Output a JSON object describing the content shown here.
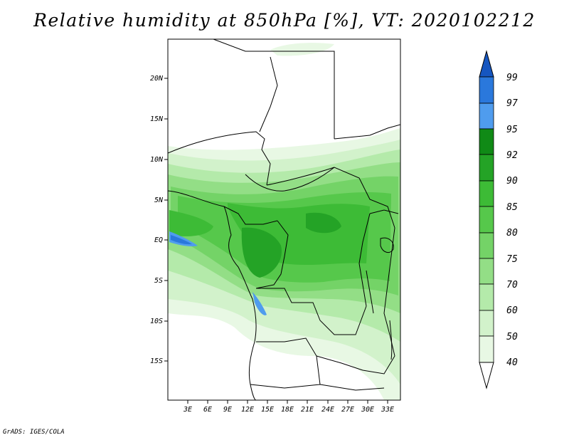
{
  "title": "Relative humidity at 850hPa [%], VT: 2020102212",
  "credit": "GrADS: IGES/COLA",
  "map": {
    "lat_ticks": [
      "20N",
      "15N",
      "10N",
      "5N",
      "EQ",
      "5S",
      "10S",
      "15S"
    ],
    "lon_ticks": [
      "3E",
      "6E",
      "9E",
      "12E",
      "15E",
      "18E",
      "21E",
      "24E",
      "27E",
      "30E",
      "33E"
    ]
  },
  "colorbar": {
    "levels": [
      "40",
      "50",
      "60",
      "70",
      "75",
      "80",
      "85",
      "90",
      "92",
      "95",
      "97",
      "99"
    ],
    "colors": [
      "#e8f8e4",
      "#d2f2cb",
      "#b4eaaa",
      "#93de86",
      "#74d367",
      "#56c84b",
      "#3dbb36",
      "#24a326",
      "#108a16",
      "#4f9cee",
      "#2a78dc",
      "#1656c0"
    ]
  }
}
